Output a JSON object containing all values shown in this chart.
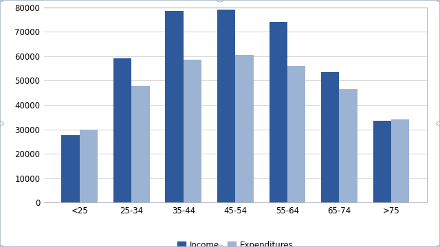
{
  "categories": [
    "<25",
    "25-34",
    "35-44",
    "45-54",
    "55-64",
    "65-74",
    ">75"
  ],
  "income": [
    27500,
    59000,
    78500,
    79000,
    74000,
    53500,
    33500
  ],
  "expenditures": [
    30000,
    48000,
    58500,
    60500,
    56000,
    46500,
    34000
  ],
  "income_color": "#2E5A9C",
  "expenditure_color": "#9DB3D4",
  "bar_width": 0.35,
  "ylim": [
    0,
    80000
  ],
  "yticks": [
    0,
    10000,
    20000,
    30000,
    40000,
    50000,
    60000,
    70000,
    80000
  ],
  "legend_labels": [
    "Income",
    "Expenditures"
  ],
  "grid_color": "#D9D9D9",
  "bg_color": "#FFFFFF",
  "plot_bg_color": "#FFFFFF",
  "outer_border_color": "#B0B8C8",
  "spine_color": "#B0B8C8",
  "tick_label_fontsize": 8.5,
  "legend_fontsize": 8.5,
  "figure_border_color": "#A8B8C8"
}
